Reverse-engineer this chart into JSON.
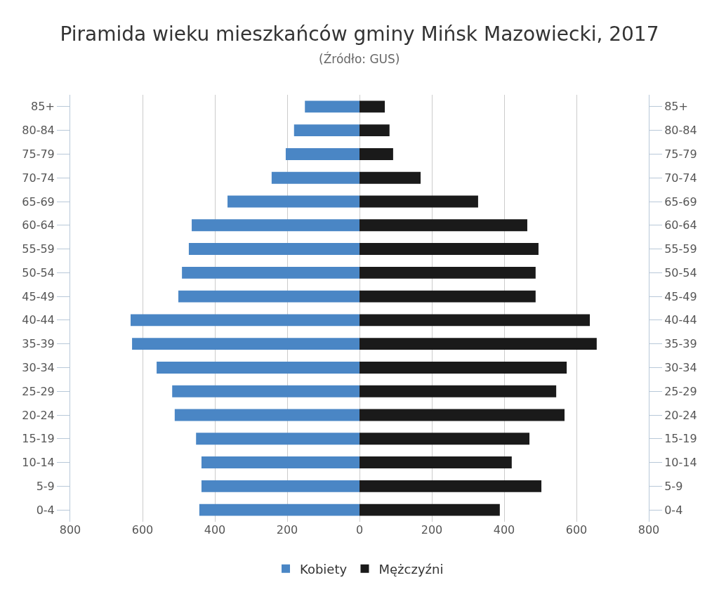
{
  "chart_data": {
    "type": "bar",
    "orientation": "horizontal",
    "title": "Piramida wieku mieszkańców gminy Mińsk Mazowiecki, 2017",
    "subtitle": "(Źródło: GUS)",
    "categories": [
      "85+",
      "80-84",
      "75-79",
      "70-74",
      "65-69",
      "60-64",
      "55-59",
      "50-54",
      "45-49",
      "40-44",
      "35-39",
      "30-34",
      "25-29",
      "20-24",
      "15-19",
      "10-14",
      "5-9",
      "0-4"
    ],
    "series": [
      {
        "name": "Kobiety",
        "color": "#4a86c5",
        "values": [
          -151,
          -181,
          -204,
          -243,
          -365,
          -464,
          -472,
          -491,
          -501,
          -633,
          -629,
          -561,
          -518,
          -511,
          -452,
          -437,
          -437,
          -443
        ]
      },
      {
        "name": "Mężczyźni",
        "color": "#1a1a1a",
        "values": [
          70,
          83,
          93,
          169,
          328,
          464,
          495,
          487,
          487,
          637,
          656,
          573,
          544,
          567,
          470,
          421,
          503,
          388
        ]
      }
    ],
    "xlim": [
      -800,
      800
    ],
    "xticks": [
      {
        "value": -800,
        "label": "800"
      },
      {
        "value": -600,
        "label": "600"
      },
      {
        "value": -400,
        "label": "400"
      },
      {
        "value": -200,
        "label": "200"
      },
      0,
      200,
      400,
      600,
      800
    ],
    "grid": "x",
    "legend": "bottom",
    "stacked": true
  }
}
